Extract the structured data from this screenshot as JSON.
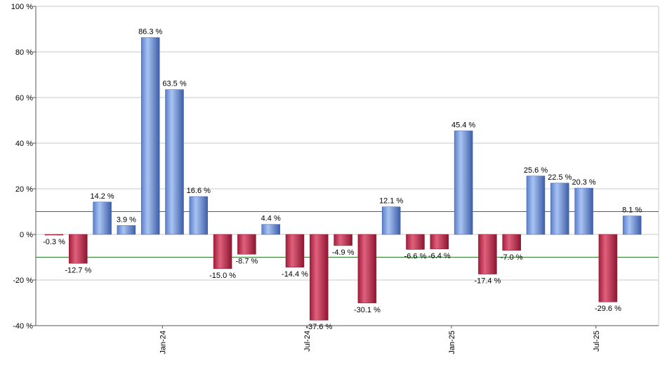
{
  "chart_data": {
    "type": "bar",
    "title": "",
    "xlabel": "",
    "ylabel": "",
    "ylim": [
      -40,
      100
    ],
    "yticks": [
      -40,
      -20,
      0,
      20,
      40,
      60,
      80,
      100
    ],
    "ytick_suffix": " %",
    "grid": true,
    "legend": "none",
    "values": [
      -0.3,
      -12.7,
      14.2,
      3.9,
      86.3,
      63.5,
      16.6,
      -15.0,
      -8.7,
      4.4,
      -14.4,
      -37.6,
      -4.9,
      -30.1,
      12.1,
      -6.6,
      -6.4,
      45.4,
      -17.4,
      -7.0,
      25.6,
      22.5,
      20.3,
      -29.6,
      8.1
    ],
    "data_labels": [
      "-0.3 %",
      "-12.7 %",
      "14.2 %",
      "3.9 %",
      "86.3 %",
      "63.5 %",
      "16.6 %",
      "-15.0 %",
      "-8.7 %",
      "4.4 %",
      "-14.4 %",
      "-37.6 %",
      "-4.9 %",
      "-30.1 %",
      "12.1 %",
      "-6.6 %",
      "-6.4 %",
      "45.4 %",
      "-17.4 %",
      "-7.0 %",
      "25.6 %",
      "22.5 %",
      "20.3 %",
      "-29.6 %",
      "8.1 %"
    ],
    "x_tick_labels": [
      {
        "label": "Jan-24",
        "position": 4.5
      },
      {
        "label": "Jul-24",
        "position": 10.5
      },
      {
        "label": "Jan-25",
        "position": 16.5
      },
      {
        "label": "Jul-25",
        "position": 22.5
      }
    ],
    "reference_lines": [
      10,
      -10
    ],
    "colors": {
      "positive": "#7a9ee0",
      "negative": "#c23a58",
      "reference_line": "#2e7d2e",
      "grid": "#c8c8c8",
      "axis": "#555555"
    }
  }
}
